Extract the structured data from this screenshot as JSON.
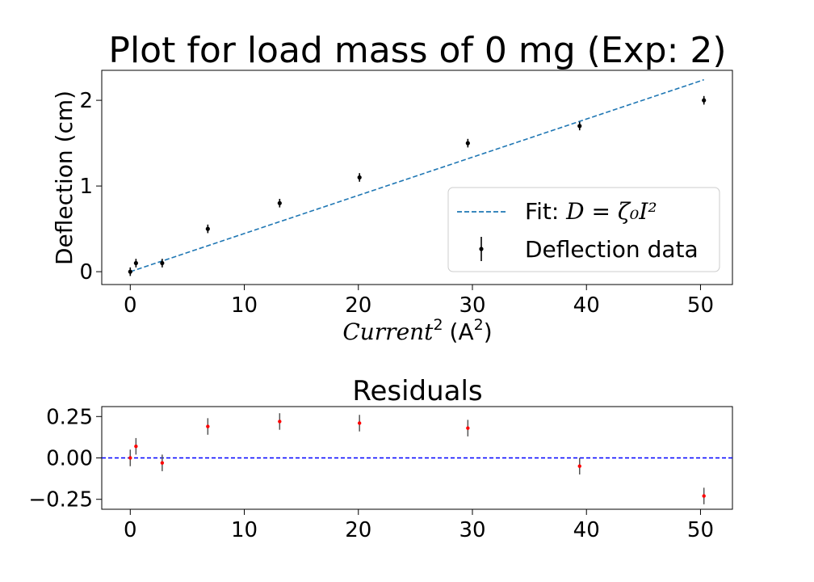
{
  "chart_data": [
    {
      "type": "scatter",
      "title": "Plot for load mass of 0 mg (Exp: 2)",
      "xlabel_base": "Current",
      "xlabel_sup": "2",
      "xlabel_unit_base": "(A",
      "xlabel_unit_sup": "2",
      "xlabel_unit_close": ")",
      "ylabel": "Deflection (cm)",
      "xlim": [
        -2.5,
        52.8
      ],
      "ylim": [
        -0.15,
        2.35
      ],
      "xticks": [
        0,
        10,
        20,
        30,
        40,
        50
      ],
      "xtick_labels": [
        "0",
        "10",
        "20",
        "30",
        "40",
        "50"
      ],
      "yticks": [
        0,
        1,
        2
      ],
      "ytick_labels": [
        "0",
        "1",
        "2"
      ],
      "grid": false,
      "legend_position": "lower-right",
      "series": [
        {
          "name": "Deflection data",
          "x": [
            0,
            0.5,
            2.8,
            6.8,
            13.1,
            20.1,
            29.6,
            39.4,
            50.3
          ],
          "y": [
            0.0,
            0.1,
            0.1,
            0.5,
            0.8,
            1.1,
            1.5,
            1.7,
            2.0
          ],
          "yerr": [
            0.05,
            0.05,
            0.05,
            0.05,
            0.05,
            0.05,
            0.05,
            0.05,
            0.05
          ],
          "color": "#000000"
        }
      ],
      "fit": {
        "name_prefix": "Fit: ",
        "name_math": "D = ζ₀I²",
        "x": [
          0,
          50.3
        ],
        "y": [
          0.0,
          2.24
        ],
        "color": "#1f77b4"
      }
    },
    {
      "type": "scatter",
      "title": "Residuals",
      "xlim": [
        -2.5,
        52.8
      ],
      "ylim": [
        -0.31,
        0.31
      ],
      "xticks": [
        0,
        10,
        20,
        30,
        40,
        50
      ],
      "xtick_labels": [
        "0",
        "10",
        "20",
        "30",
        "40",
        "50"
      ],
      "yticks": [
        0.25,
        0,
        -0.25
      ],
      "ytick_labels": [
        "0.25",
        "0.00",
        "−0.25"
      ],
      "grid": false,
      "zero_line_color": "#0000ff",
      "series": [
        {
          "x": [
            0,
            0.5,
            2.8,
            6.8,
            13.1,
            20.1,
            29.6,
            39.4,
            50.3
          ],
          "y": [
            0.0,
            0.07,
            -0.03,
            0.19,
            0.22,
            0.21,
            0.18,
            -0.05,
            -0.23
          ],
          "yerr": [
            0.05,
            0.05,
            0.05,
            0.05,
            0.05,
            0.05,
            0.05,
            0.05,
            0.05
          ],
          "marker_color": "#ff0000",
          "errbar_color": "#555555"
        }
      ]
    }
  ]
}
